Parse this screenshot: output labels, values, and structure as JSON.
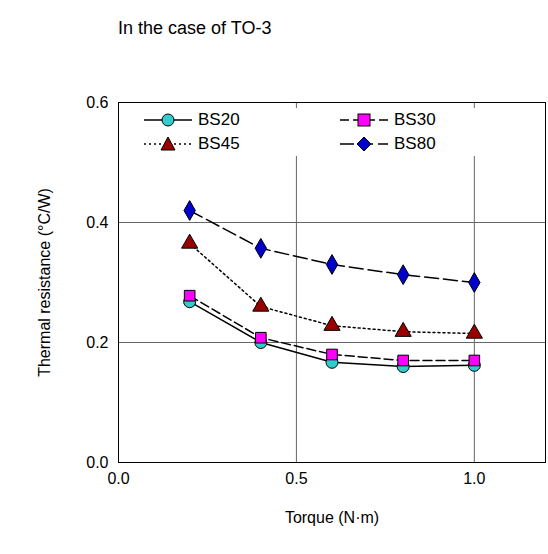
{
  "chart_data": {
    "type": "line",
    "title": "In the case of TO-3",
    "x_label": "Torque (N·m)",
    "y_label": "Thermal resistance (°C/W)",
    "x": [
      0.2,
      0.4,
      0.6,
      0.8,
      1.0
    ],
    "series": [
      {
        "name": "BS20",
        "color": "#33cccc",
        "marker": "circle",
        "line_style": "solid",
        "values": [
          0.268,
          0.2,
          0.167,
          0.16,
          0.162
        ]
      },
      {
        "name": "BS30",
        "color": "#ff00ff",
        "marker": "square",
        "line_style": "dashed",
        "values": [
          0.278,
          0.208,
          0.18,
          0.17,
          0.17
        ]
      },
      {
        "name": "BS45",
        "color": "#990000",
        "marker": "triangle",
        "line_style": "dotted",
        "values": [
          0.365,
          0.26,
          0.228,
          0.218,
          0.215
        ]
      },
      {
        "name": "BS80",
        "color": "#0000cc",
        "marker": "diamond",
        "line_style": "longdash",
        "values": [
          0.42,
          0.357,
          0.33,
          0.313,
          0.3
        ]
      }
    ],
    "xlim": [
      0,
      1.2
    ],
    "xticks": [
      {
        "value": 0,
        "label": "0.0"
      },
      {
        "value": 0.5,
        "label": "0.5"
      },
      {
        "value": 1,
        "label": "1.0"
      }
    ],
    "ylim": [
      0,
      0.6
    ],
    "yticks": [
      {
        "value": 0,
        "label": "0.0"
      },
      {
        "value": 0.2,
        "label": "0.2"
      },
      {
        "value": 0.4,
        "label": "0.4"
      },
      {
        "value": 0.6,
        "label": "0.6"
      }
    ],
    "grid": true,
    "legend": "top"
  }
}
